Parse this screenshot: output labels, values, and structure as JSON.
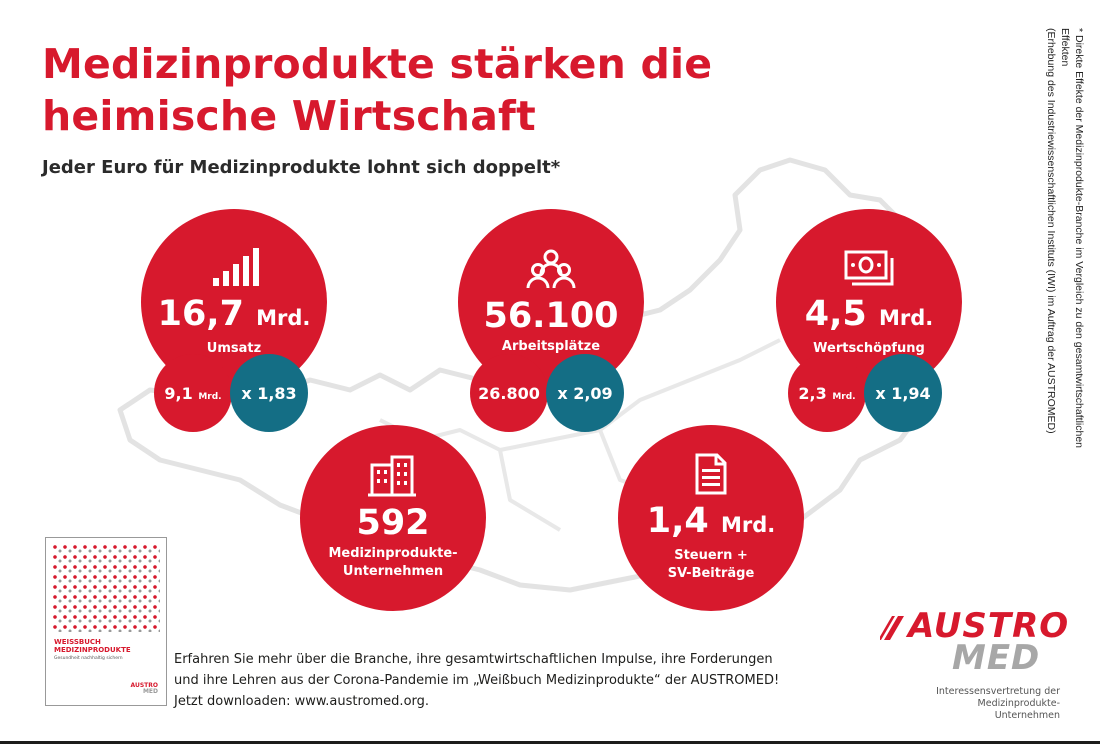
{
  "header": {
    "title_line1": "Medizinprodukte stärken die",
    "title_line2": "heimische Wirtschaft",
    "subtitle": "Jeder Euro für Medizinprodukte lohnt sich doppelt*"
  },
  "stats": {
    "umsatz": {
      "value": "16,7",
      "unit": "Mrd.",
      "label": "Umsatz",
      "direct_value": "9,1",
      "direct_unit": "Mrd.",
      "multiplier": "x 1,83",
      "icon": "bar-signal-icon"
    },
    "arbeitsplaetze": {
      "value": "56.100",
      "label": "Arbeitsplätze",
      "direct_value": "26.800",
      "multiplier": "x 2,09",
      "icon": "people-group-icon"
    },
    "wertschoepfung": {
      "value": "4,5",
      "unit": "Mrd.",
      "label": "Wertschöpfung",
      "direct_value": "2,3",
      "direct_unit": "Mrd.",
      "multiplier": "x 1,94",
      "icon": "banknote-icon"
    },
    "unternehmen": {
      "value": "592",
      "label_line1": "Medizinprodukte-",
      "label_line2": "Unternehmen",
      "icon": "office-building-icon"
    },
    "steuern": {
      "value": "1,4",
      "unit": "Mrd.",
      "label_line1": "Steuern +",
      "label_line2": "SV-Beiträge",
      "icon": "document-icon"
    }
  },
  "footnote": {
    "line1": "* Direkte Effekte der Medizinprodukte-Branche im Vergleich zu den gesamtwirtschaftlichen Effekten",
    "line2": "(Erhebung des Industriewissenschaftlichen Instituts (IWI) im Auftrag der AUSTROMED)"
  },
  "book": {
    "title_line1": "WEISSBUCH",
    "title_line2": "MEDIZINPRODUKTE",
    "subtitle": "Gesundheit nachhaltig sichern",
    "logo_top": "AUSTRO",
    "logo_bottom": "MED"
  },
  "cta": {
    "line1": "Erfahren Sie mehr über die Branche, ihre gesamtwirtschaftlichen Impulse, ihre Forderungen",
    "line2": "und ihre Lehren aus der Corona-Pandemie im „Weißbuch Medizinprodukte“ der AUSTROMED!",
    "line3": "Jetzt downloaden: www.austromed.org."
  },
  "logo": {
    "top": "AUSTRO",
    "bottom": "MED",
    "sub_line1": "Interessensvertretung der",
    "sub_line2": "Medizinprodukte-Unternehmen"
  },
  "colors": {
    "red": "#d7192d",
    "teal": "#146e85",
    "map_gray": "#e3e3e3"
  }
}
